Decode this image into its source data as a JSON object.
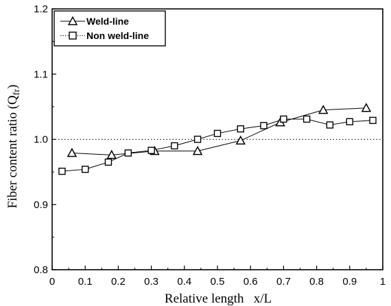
{
  "chart_data": {
    "type": "line",
    "xlabel": "Relative length   x/L",
    "ylabel": "Fiber content ratio (Q",
    "ylabel_sub": "fr",
    "ylabel_close": ")",
    "xlim": [
      0,
      1
    ],
    "ylim": [
      0.8,
      1.2
    ],
    "x_ticks": [
      "0",
      "0.1",
      "0.2",
      "0.3",
      "0.4",
      "0.5",
      "0.6",
      "0.7",
      "0.8",
      "0.9",
      "1"
    ],
    "y_ticks": [
      "0.8",
      "0.9",
      "1.0",
      "1.1",
      "1.2"
    ],
    "reference_line": {
      "y": 1.0,
      "style": "dotted"
    },
    "legend_position": "top-left",
    "series": [
      {
        "name": "Weld-line",
        "marker": "triangle",
        "x": [
          0.06,
          0.18,
          0.31,
          0.44,
          0.57,
          0.69,
          0.82,
          0.95
        ],
        "y": [
          0.979,
          0.976,
          0.982,
          0.982,
          0.998,
          1.026,
          1.045,
          1.048
        ]
      },
      {
        "name": "Non weld-line",
        "marker": "square",
        "x": [
          0.03,
          0.1,
          0.17,
          0.23,
          0.3,
          0.37,
          0.44,
          0.5,
          0.57,
          0.64,
          0.7,
          0.77,
          0.84,
          0.9,
          0.97
        ],
        "y": [
          0.951,
          0.954,
          0.965,
          0.979,
          0.983,
          0.99,
          1.0,
          1.009,
          1.016,
          1.021,
          1.031,
          1.031,
          1.022,
          1.027,
          1.029
        ]
      }
    ]
  }
}
